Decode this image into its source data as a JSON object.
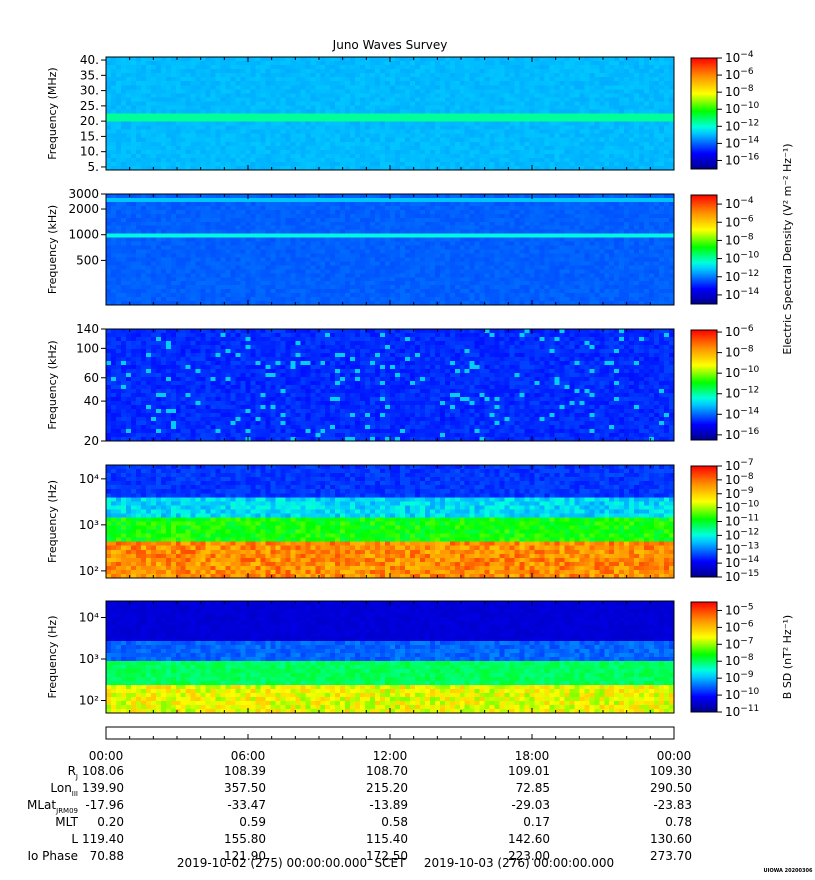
{
  "title": "Juno Waves Survey",
  "footer_left": "2019-10-02 (275) 00:00:00.000",
  "footer_mid": "SCET",
  "footer_right": "2019-10-03 (276) 00:00:00.000",
  "stamp": "UIOWA 20200306",
  "time_ticks": [
    "00:00",
    "06:00",
    "12:00",
    "18:00",
    "00:00"
  ],
  "ephemeris": [
    {
      "label": "R",
      "sub": "J",
      "values": [
        "108.06",
        "108.39",
        "108.70",
        "109.01",
        "109.30"
      ]
    },
    {
      "label": "Lon",
      "sub": "III",
      "values": [
        "139.90",
        "357.50",
        "215.20",
        "72.85",
        "290.50"
      ]
    },
    {
      "label": "MLat",
      "sub": "JRM09",
      "values": [
        "-17.96",
        "-33.47",
        "-13.89",
        "-29.03",
        "-23.83"
      ]
    },
    {
      "label": "MLT",
      "sub": "",
      "values": [
        "0.20",
        "0.59",
        "0.58",
        "0.17",
        "0.78"
      ]
    },
    {
      "label": "L",
      "sub": "",
      "values": [
        "119.40",
        "155.80",
        "115.40",
        "142.60",
        "130.60"
      ]
    },
    {
      "label": "Io Phase",
      "sub": "",
      "values": [
        "70.88",
        "121.90",
        "172.50",
        "223.00",
        "273.70"
      ]
    }
  ],
  "colorbar_labels": [
    {
      "text": "Electric Spectral Density (V² m⁻² Hz⁻¹)",
      "panels": [
        0,
        1,
        2
      ]
    },
    {
      "text": "B SD (nT² Hz⁻¹)",
      "panels": [
        4
      ]
    }
  ],
  "chart_data": [
    {
      "type": "heatmap",
      "title": "Juno Waves Survey",
      "ylabel": "Frequency (MHz)",
      "yscale": "linear",
      "ylim": [
        4,
        41
      ],
      "yticks": [
        {
          "value": 5,
          "label": "5."
        },
        {
          "value": 10,
          "label": "10."
        },
        {
          "value": 15,
          "label": "15."
        },
        {
          "value": 20,
          "label": "20."
        },
        {
          "value": 25,
          "label": "25."
        },
        {
          "value": 30,
          "label": "30."
        },
        {
          "value": 35,
          "label": "35."
        },
        {
          "value": 40,
          "label": "40."
        }
      ],
      "x_range": [
        "2019-10-02 00:00",
        "2019-10-03 00:00"
      ],
      "colorbar": {
        "scale": "log",
        "range_exp": [
          -17,
          -4
        ],
        "tick_exps": [
          -16,
          -14,
          -12,
          -10,
          -8,
          -6,
          -4
        ]
      },
      "features": [
        {
          "kind": "band",
          "freq": 21,
          "level": -11.5
        }
      ]
    },
    {
      "type": "heatmap",
      "ylabel": "Frequency (kHz)",
      "yscale": "log",
      "ylim": [
        150,
        3000
      ],
      "yticks": [
        {
          "value": 500,
          "label": "500"
        },
        {
          "value": 1000,
          "label": "1000"
        },
        {
          "value": 2000,
          "label": "2000"
        },
        {
          "value": 3000,
          "label": "3000"
        }
      ],
      "x_range": [
        "2019-10-02 00:00",
        "2019-10-03 00:00"
      ],
      "colorbar": {
        "scale": "log",
        "range_exp": [
          -15,
          -3
        ],
        "tick_exps": [
          -14,
          -12,
          -10,
          -8,
          -6,
          -4
        ]
      },
      "features": [
        {
          "kind": "band",
          "freq": 1000,
          "level": -10.5
        },
        {
          "kind": "band",
          "freq": 2500,
          "level": -11.2
        }
      ]
    },
    {
      "type": "heatmap",
      "ylabel": "Frequency (kHz)",
      "yscale": "log",
      "ylim": [
        20,
        140
      ],
      "yticks": [
        {
          "value": 20,
          "label": "20"
        },
        {
          "value": 40,
          "label": "40"
        },
        {
          "value": 60,
          "label": "60"
        },
        {
          "value": 100,
          "label": "100"
        },
        {
          "value": 140,
          "label": "140"
        }
      ],
      "x_range": [
        "2019-10-02 00:00",
        "2019-10-03 00:00"
      ],
      "colorbar": {
        "scale": "log",
        "range_exp": [
          -16.5,
          -5.8
        ],
        "tick_exps": [
          -16,
          -14,
          -12,
          -10,
          -8,
          -6
        ]
      },
      "features": [
        {
          "kind": "bursts",
          "level": -13
        }
      ]
    },
    {
      "type": "heatmap",
      "ylabel": "Frequency (Hz)",
      "yscale": "log",
      "ylim": [
        70,
        20000
      ],
      "yticks": [
        {
          "value": 100,
          "label": "10²"
        },
        {
          "value": 1000,
          "label": "10³"
        },
        {
          "value": 10000,
          "label": "10⁴"
        }
      ],
      "x_range": [
        "2019-10-02 00:00",
        "2019-10-03 00:00"
      ],
      "colorbar": {
        "scale": "log",
        "range_exp": [
          -15,
          -7
        ],
        "tick_exps": [
          -15,
          -14,
          -13,
          -12,
          -11,
          -10,
          -9,
          -8,
          -7
        ]
      },
      "features": [
        {
          "kind": "low_freq_intense",
          "below": 400,
          "level": -8.3
        }
      ]
    },
    {
      "type": "heatmap",
      "ylabel": "Frequency (Hz)",
      "yscale": "log",
      "ylim": [
        50,
        25000
      ],
      "yticks": [
        {
          "value": 100,
          "label": "10²"
        },
        {
          "value": 1000,
          "label": "10³"
        },
        {
          "value": 10000,
          "label": "10⁴"
        }
      ],
      "x_range": [
        "2019-10-02 00:00",
        "2019-10-03 00:00"
      ],
      "colorbar": {
        "scale": "log",
        "range_exp": [
          -11,
          -4.5
        ],
        "tick_exps": [
          -11,
          -10,
          -9,
          -8,
          -7,
          -6,
          -5
        ]
      },
      "features": [
        {
          "kind": "low_freq_intense",
          "below": 250,
          "level": -6.6
        }
      ]
    }
  ]
}
